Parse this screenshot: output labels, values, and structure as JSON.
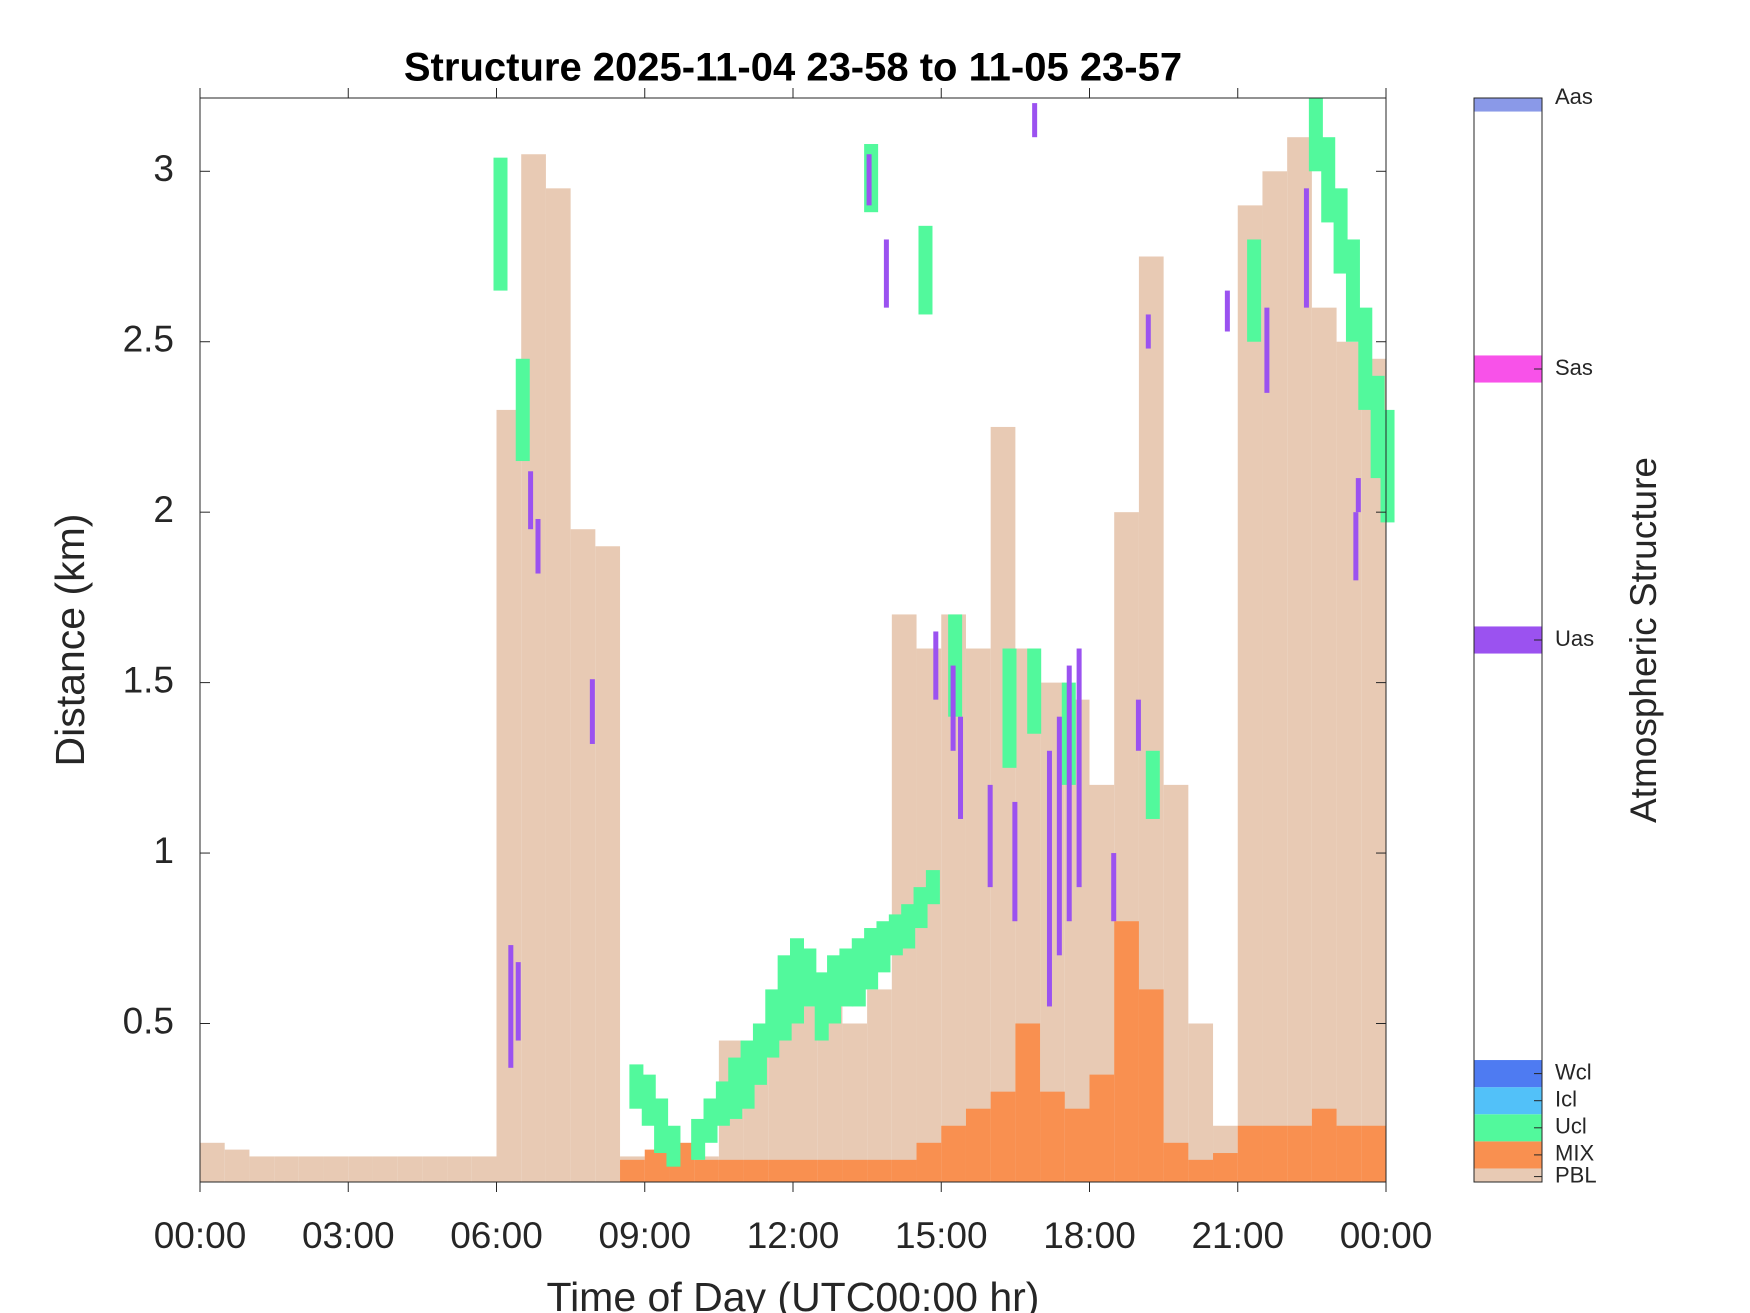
{
  "chart_data": {
    "type": "timeheight",
    "title": "Structure 2025-11-04 23-58 to 11-05 23-57",
    "x_label": "Time of Day (UTC00:00 hr)",
    "y_label": "Distance (km)",
    "xlim": [
      0,
      24
    ],
    "xticks": [
      {
        "value": 0,
        "label": "00:00"
      },
      {
        "value": 3,
        "label": "03:00"
      },
      {
        "value": 6,
        "label": "06:00"
      },
      {
        "value": 9,
        "label": "09:00"
      },
      {
        "value": 12,
        "label": "12:00"
      },
      {
        "value": 15,
        "label": "15:00"
      },
      {
        "value": 18,
        "label": "18:00"
      },
      {
        "value": 21,
        "label": "21:00"
      },
      {
        "value": 24,
        "label": "00:00"
      }
    ],
    "ylim": [
      0.035,
      3.215
    ],
    "yticks": [
      0.5,
      1,
      1.5,
      2,
      2.5,
      3
    ],
    "series": [
      {
        "name": "PBL",
        "color": "#e8cab4",
        "kind": "bar",
        "x": [
          0,
          0.5,
          1,
          1.5,
          2,
          2.5,
          3,
          3.5,
          4,
          4.5,
          5,
          5.5,
          6,
          6.5,
          7,
          7.5,
          8,
          8.5,
          9,
          9.5,
          10,
          10.5,
          11,
          11.5,
          12,
          12.5,
          13,
          13.5,
          14,
          14.5,
          15,
          15.5,
          16,
          16.5,
          17,
          17.5,
          18,
          18.5,
          19,
          19.5,
          20,
          20.5,
          21,
          21.5,
          22,
          22.5,
          23,
          23.5
        ],
        "values": [
          0.15,
          0.13,
          0.11,
          0.11,
          0.11,
          0.11,
          0.11,
          0.11,
          0.11,
          0.11,
          0.11,
          0.11,
          2.3,
          3.05,
          2.95,
          1.95,
          1.9,
          0.11,
          0.11,
          0.12,
          0.11,
          0.45,
          0.4,
          0.55,
          0.55,
          0.55,
          0.5,
          0.6,
          1.7,
          1.6,
          1.7,
          1.6,
          2.25,
          1.6,
          1.5,
          1.45,
          1.2,
          2.0,
          2.75,
          1.2,
          0.5,
          0.2,
          2.9,
          3.0,
          3.1,
          2.6,
          2.5,
          2.45
        ]
      },
      {
        "name": "MIX",
        "color": "#f99050",
        "kind": "bar",
        "x": [
          0,
          0.5,
          1,
          1.5,
          2,
          2.5,
          3,
          3.5,
          4,
          4.5,
          5,
          5.5,
          6,
          6.5,
          7,
          7.5,
          8,
          8.5,
          9,
          9.5,
          10,
          10.5,
          11,
          11.5,
          12,
          12.5,
          13,
          13.5,
          14,
          14.5,
          15,
          15.5,
          16,
          16.5,
          17,
          17.5,
          18,
          18.5,
          19,
          19.5,
          20,
          20.5,
          21,
          21.5,
          22,
          22.5,
          23,
          23.5
        ],
        "values": [
          null,
          null,
          null,
          null,
          null,
          null,
          null,
          null,
          null,
          null,
          null,
          null,
          null,
          null,
          null,
          null,
          null,
          0.1,
          0.13,
          0.15,
          0.1,
          0.1,
          0.1,
          0.1,
          0.1,
          0.1,
          0.1,
          0.1,
          0.1,
          0.15,
          0.2,
          0.25,
          0.3,
          0.5,
          0.3,
          0.25,
          0.35,
          0.8,
          0.6,
          0.15,
          0.1,
          0.12,
          0.2,
          0.2,
          0.2,
          0.25,
          0.2,
          0.2
        ]
      },
      {
        "name": "Ucl",
        "color": "#52f99c",
        "kind": "segment",
        "x": [
          6.0,
          6.45,
          8.75,
          9.0,
          9.25,
          9.5,
          10.0,
          10.25,
          10.5,
          10.75,
          11.0,
          11.25,
          11.5,
          11.75,
          12.0,
          12.25,
          12.5,
          12.75,
          13.0,
          13.25,
          13.5,
          13.75,
          14.0,
          14.25,
          14.5,
          14.75,
          13.5,
          14.6,
          15.2,
          16.3,
          16.8,
          17.5,
          19.2,
          21.25,
          22.5,
          22.75,
          23.0,
          23.25,
          23.5,
          23.75,
          23.95
        ],
        "base": [
          2.65,
          2.15,
          0.25,
          0.2,
          0.12,
          0.08,
          0.1,
          0.15,
          0.2,
          0.22,
          0.25,
          0.32,
          0.4,
          0.45,
          0.5,
          0.55,
          0.45,
          0.5,
          0.55,
          0.55,
          0.6,
          0.65,
          0.7,
          0.72,
          0.78,
          0.85,
          2.88,
          2.58,
          1.4,
          1.25,
          1.35,
          1.2,
          1.1,
          2.5,
          3.0,
          2.85,
          2.7,
          2.5,
          2.3,
          2.1,
          1.97
        ],
        "values": [
          3.04,
          2.45,
          0.38,
          0.35,
          0.28,
          0.2,
          0.22,
          0.28,
          0.33,
          0.4,
          0.45,
          0.5,
          0.6,
          0.7,
          0.75,
          0.72,
          0.65,
          0.7,
          0.72,
          0.75,
          0.78,
          0.8,
          0.82,
          0.85,
          0.9,
          0.95,
          3.08,
          2.84,
          1.7,
          1.6,
          1.6,
          1.5,
          1.3,
          2.8,
          3.215,
          3.1,
          2.95,
          2.8,
          2.6,
          2.4,
          2.3
        ]
      },
      {
        "name": "Uas",
        "color": "#9b52f0",
        "kind": "segment",
        "x": [
          6.3,
          6.45,
          6.7,
          6.85,
          7.95,
          13.55,
          13.9,
          14.9,
          15.25,
          15.4,
          16.0,
          16.5,
          16.9,
          17.2,
          17.4,
          17.6,
          17.8,
          18.5,
          19.0,
          19.2,
          20.8,
          21.6,
          22.4,
          23.4,
          23.45
        ],
        "base": [
          0.37,
          0.45,
          1.95,
          1.82,
          1.32,
          2.9,
          2.6,
          1.45,
          1.3,
          1.1,
          0.9,
          0.8,
          3.1,
          0.55,
          0.7,
          0.8,
          0.9,
          0.8,
          1.3,
          2.48,
          2.53,
          2.35,
          2.6,
          1.8,
          2.0
        ],
        "values": [
          0.73,
          0.68,
          2.12,
          1.98,
          1.51,
          3.05,
          2.8,
          1.65,
          1.55,
          1.4,
          1.2,
          1.15,
          3.2,
          1.3,
          1.4,
          1.55,
          1.6,
          1.0,
          1.45,
          2.58,
          2.65,
          2.6,
          2.95,
          2.0,
          2.1
        ]
      }
    ],
    "colorbar": {
      "label": "Atmospheric Structure",
      "lim": [
        0,
        40
      ],
      "ticks": [
        {
          "value": 0.2,
          "label": "PBL"
        },
        {
          "value": 1,
          "label": "MIX"
        },
        {
          "value": 2,
          "label": "Ucl"
        },
        {
          "value": 3,
          "label": "Icl"
        },
        {
          "value": 4,
          "label": "Wcl"
        },
        {
          "value": 20,
          "label": "Uas"
        },
        {
          "value": 30,
          "label": "Sas"
        },
        {
          "value": 40,
          "label": "Aas"
        }
      ],
      "colors": [
        "#e8cab4",
        "#f99050",
        "#52f99c",
        "#52c1f9",
        "#4e7bf2",
        "#9b52f0",
        "#f852e9",
        "#8a99e8"
      ]
    }
  }
}
